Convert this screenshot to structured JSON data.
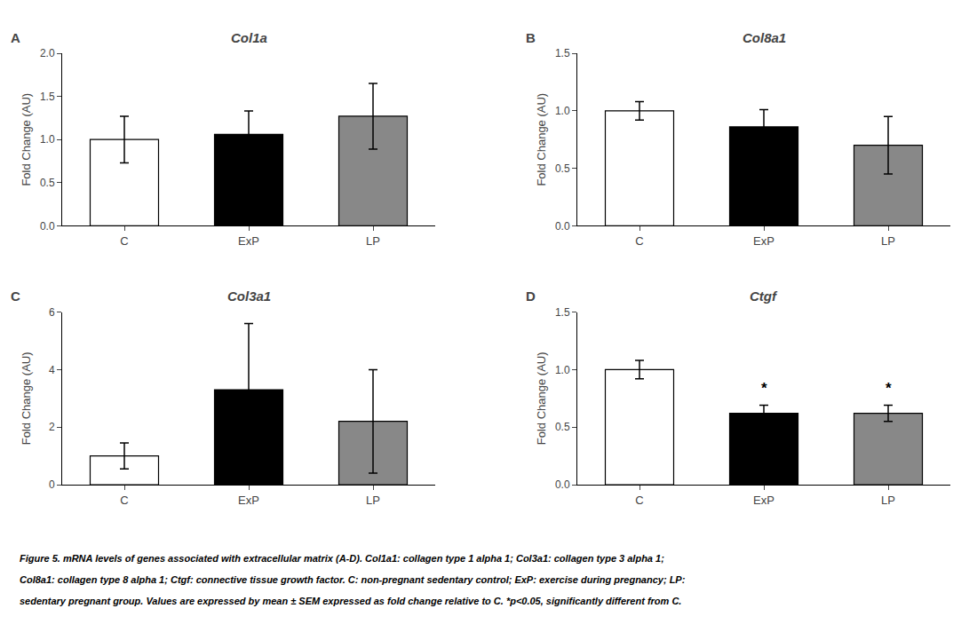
{
  "chart_data": [
    {
      "type": "bar",
      "label": "A",
      "title": "Col1a",
      "ylabel": "Fold Change (AU)",
      "categories": [
        "C",
        "ExP",
        "LP"
      ],
      "values": [
        1.0,
        1.06,
        1.27
      ],
      "errors": [
        0.27,
        0.27,
        0.38
      ],
      "colors": [
        "white",
        "black",
        "#888888"
      ],
      "edge_color": "black",
      "ylim": [
        0,
        2.0
      ],
      "yticks": [
        {
          "value": 0.0,
          "label": "0.0"
        },
        0.5,
        {
          "value": 1.0,
          "label": "1.0"
        },
        1.5,
        {
          "value": 2.0,
          "label": "2.0"
        }
      ],
      "grid": false,
      "annotations": []
    },
    {
      "type": "bar",
      "label": "B",
      "title": "Col8a1",
      "ylabel": "Fold Change (AU)",
      "categories": [
        "C",
        "ExP",
        "LP"
      ],
      "values": [
        1.0,
        0.86,
        0.7
      ],
      "errors": [
        0.08,
        0.15,
        0.25
      ],
      "colors": [
        "white",
        "black",
        "#888888"
      ],
      "edge_color": "black",
      "ylim": [
        0,
        1.5
      ],
      "yticks": [
        {
          "value": 0.0,
          "label": "0.0"
        },
        0.5,
        {
          "value": 1.0,
          "label": "1.0"
        },
        1.5
      ],
      "grid": false,
      "annotations": []
    },
    {
      "type": "bar",
      "label": "C",
      "title": "Col3a1",
      "ylabel": "Fold Change (AU)",
      "categories": [
        "C",
        "ExP",
        "LP"
      ],
      "values": [
        1.0,
        3.3,
        2.2
      ],
      "errors": [
        0.45,
        2.3,
        1.8
      ],
      "colors": [
        "white",
        "black",
        "#888888"
      ],
      "edge_color": "black",
      "ylim": [
        0,
        6
      ],
      "yticks": [
        0,
        2,
        4,
        6
      ],
      "grid": false,
      "annotations": []
    },
    {
      "type": "bar",
      "label": "D",
      "title": "Ctgf",
      "ylabel": "Fold Change (AU)",
      "categories": [
        "C",
        "ExP",
        "LP"
      ],
      "values": [
        1.0,
        0.62,
        0.62
      ],
      "errors": [
        0.08,
        0.07,
        0.07
      ],
      "colors": [
        "white",
        "black",
        "#888888"
      ],
      "edge_color": "black",
      "ylim": [
        0,
        1.5
      ],
      "yticks": [
        {
          "value": 0.0,
          "label": "0.0"
        },
        0.5,
        {
          "value": 1.0,
          "label": "1.0"
        },
        1.5
      ],
      "grid": false,
      "annotations": [
        {
          "x": "ExP",
          "text": "*"
        },
        {
          "x": "LP",
          "text": "*"
        }
      ]
    }
  ],
  "caption": [
    "Figure 5. mRNA levels of genes associated with extracellular matrix (A-D). Col1a1: collagen type 1 alpha 1; Col3a1: collagen type 3 alpha 1;",
    "Col8a1: collagen type 8 alpha 1; Ctgf: connective tissue growth factor. C: non-pregnant sedentary control; ExP: exercise during pregnancy; LP:",
    "sedentary pregnant group. Values are expressed by mean ± SEM expressed as fold change relative to C. *p<0.05, significantly different from C."
  ]
}
